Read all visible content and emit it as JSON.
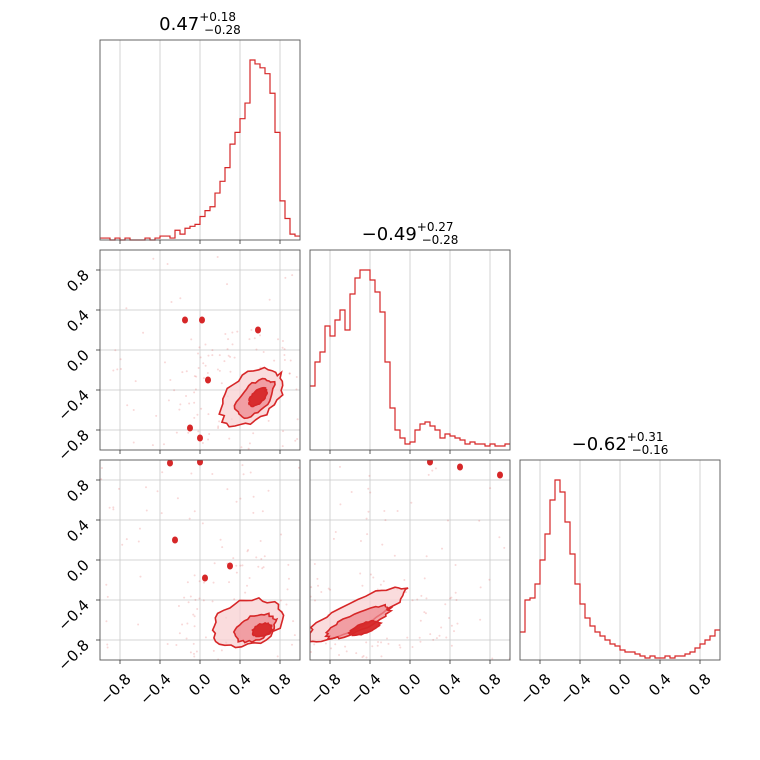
{
  "figure": {
    "type": "corner-plot",
    "accent": "#d62728",
    "fill_light": "#f8d0d2",
    "fill_mid": "#ee8a8f"
  },
  "titles": [
    {
      "median": "0.47",
      "plus": "+0.18",
      "minus": "−0.28"
    },
    {
      "median": "−0.49",
      "plus": "+0.27",
      "minus": "−0.28"
    },
    {
      "median": "−0.62",
      "plus": "+0.31",
      "minus": "−0.16"
    }
  ],
  "tick_labels": [
    "−0.8",
    "−0.4",
    "0.0",
    "0.4",
    "0.8"
  ],
  "chart_data": [
    {
      "type": "histogram",
      "param_index": 0,
      "xlim": [
        -1,
        1
      ],
      "bin_width": 0.05,
      "bin_starts": [
        -1.0,
        -0.95,
        -0.9,
        -0.85,
        -0.8,
        -0.75,
        -0.7,
        -0.65,
        -0.6,
        -0.55,
        -0.5,
        -0.45,
        -0.4,
        -0.35,
        -0.3,
        -0.25,
        -0.2,
        -0.15,
        -0.1,
        -0.05,
        0.0,
        0.05,
        0.1,
        0.15,
        0.2,
        0.25,
        0.3,
        0.35,
        0.4,
        0.45,
        0.5,
        0.55,
        0.6,
        0.65,
        0.7,
        0.75,
        0.8,
        0.85,
        0.9,
        0.95
      ],
      "values": [
        0.01,
        0.01,
        0.0,
        0.01,
        0.0,
        0.01,
        0.0,
        0.0,
        0.0,
        0.01,
        0.0,
        0.01,
        0.02,
        0.02,
        0.01,
        0.05,
        0.03,
        0.06,
        0.07,
        0.08,
        0.12,
        0.15,
        0.17,
        0.24,
        0.3,
        0.37,
        0.49,
        0.55,
        0.62,
        0.7,
        0.92,
        0.9,
        0.88,
        0.85,
        0.75,
        0.55,
        0.2,
        0.11,
        0.03,
        0.02
      ]
    },
    {
      "type": "histogram",
      "param_index": 1,
      "xlim": [
        -1,
        1
      ],
      "bin_width": 0.05,
      "bin_starts": [
        -1.0,
        -0.95,
        -0.9,
        -0.85,
        -0.8,
        -0.75,
        -0.7,
        -0.65,
        -0.6,
        -0.55,
        -0.5,
        -0.45,
        -0.4,
        -0.35,
        -0.3,
        -0.25,
        -0.2,
        -0.15,
        -0.1,
        -0.05,
        0.0,
        0.05,
        0.1,
        0.15,
        0.2,
        0.25,
        0.3,
        0.35,
        0.4,
        0.45,
        0.5,
        0.55,
        0.6,
        0.65,
        0.7,
        0.75,
        0.8,
        0.85,
        0.9,
        0.95
      ],
      "values": [
        0.32,
        0.44,
        0.49,
        0.62,
        0.57,
        0.65,
        0.7,
        0.6,
        0.78,
        0.86,
        0.9,
        0.9,
        0.85,
        0.79,
        0.69,
        0.44,
        0.21,
        0.1,
        0.06,
        0.03,
        0.04,
        0.1,
        0.13,
        0.14,
        0.12,
        0.1,
        0.06,
        0.08,
        0.07,
        0.06,
        0.05,
        0.03,
        0.04,
        0.03,
        0.03,
        0.02,
        0.03,
        0.02,
        0.02,
        0.03
      ]
    },
    {
      "type": "histogram",
      "param_index": 2,
      "xlim": [
        -1,
        1
      ],
      "bin_width": 0.05,
      "bin_starts": [
        -1.0,
        -0.95,
        -0.9,
        -0.85,
        -0.8,
        -0.75,
        -0.7,
        -0.65,
        -0.6,
        -0.55,
        -0.5,
        -0.45,
        -0.4,
        -0.35,
        -0.3,
        -0.25,
        -0.2,
        -0.15,
        -0.1,
        -0.05,
        0.0,
        0.05,
        0.1,
        0.15,
        0.2,
        0.25,
        0.3,
        0.35,
        0.4,
        0.45,
        0.5,
        0.55,
        0.6,
        0.65,
        0.7,
        0.75,
        0.8,
        0.85,
        0.9,
        0.95
      ],
      "values": [
        0.14,
        0.3,
        0.31,
        0.38,
        0.5,
        0.63,
        0.8,
        0.9,
        0.84,
        0.69,
        0.53,
        0.38,
        0.28,
        0.21,
        0.17,
        0.14,
        0.12,
        0.1,
        0.08,
        0.07,
        0.05,
        0.04,
        0.04,
        0.03,
        0.02,
        0.01,
        0.02,
        0.01,
        0.01,
        0.02,
        0.01,
        0.02,
        0.02,
        0.03,
        0.04,
        0.06,
        0.08,
        0.1,
        0.12,
        0.15
      ]
    },
    {
      "type": "contour-2d",
      "x_param": 0,
      "y_param": 1,
      "xlim": [
        -1,
        1
      ],
      "ylim": [
        -1,
        1
      ],
      "levels": [
        {
          "level": "outer",
          "center": [
            0.52,
            -0.47
          ],
          "radii": [
            0.36,
            0.22
          ],
          "angle_deg": 40
        },
        {
          "level": "middle",
          "center": [
            0.55,
            -0.48
          ],
          "radii": [
            0.24,
            0.13
          ],
          "angle_deg": 45
        },
        {
          "level": "inner",
          "center": [
            0.58,
            -0.47
          ],
          "radii": [
            0.11,
            0.06
          ],
          "angle_deg": 45
        }
      ],
      "islands": [
        [
          -0.15,
          0.3
        ],
        [
          0.02,
          0.3
        ],
        [
          0.58,
          0.2
        ],
        [
          -0.1,
          -0.78
        ],
        [
          0.0,
          -0.88
        ],
        [
          0.08,
          -0.3
        ]
      ],
      "scatter_seed": 7,
      "scatter_count": 140
    },
    {
      "type": "contour-2d",
      "x_param": 0,
      "y_param": 2,
      "xlim": [
        -1,
        1
      ],
      "ylim": [
        -1,
        1
      ],
      "levels": [
        {
          "level": "outer",
          "center": [
            0.47,
            -0.63
          ],
          "radii": [
            0.36,
            0.22
          ],
          "angle_deg": 18
        },
        {
          "level": "middle",
          "center": [
            0.55,
            -0.68
          ],
          "radii": [
            0.22,
            0.12
          ],
          "angle_deg": 22
        },
        {
          "level": "inner",
          "center": [
            0.62,
            -0.7
          ],
          "radii": [
            0.1,
            0.06
          ],
          "angle_deg": 20
        }
      ],
      "islands": [
        [
          -0.25,
          0.2
        ],
        [
          0.3,
          -0.06
        ],
        [
          0.05,
          -0.18
        ],
        [
          -0.3,
          0.97
        ],
        [
          0.0,
          0.98
        ]
      ],
      "scatter_seed": 11,
      "scatter_count": 140
    },
    {
      "type": "contour-2d",
      "x_param": 1,
      "y_param": 2,
      "xlim": [
        -1,
        1
      ],
      "ylim": [
        -1,
        1
      ],
      "levels": [
        {
          "level": "outer",
          "center": [
            -0.55,
            -0.55
          ],
          "radii": [
            0.55,
            0.13
          ],
          "angle_deg": 27
        },
        {
          "level": "middle",
          "center": [
            -0.52,
            -0.62
          ],
          "radii": [
            0.35,
            0.09
          ],
          "angle_deg": 24
        },
        {
          "level": "inner",
          "center": [
            -0.45,
            -0.68
          ],
          "radii": [
            0.16,
            0.05
          ],
          "angle_deg": 20
        }
      ],
      "islands": [
        [
          0.2,
          0.98
        ],
        [
          0.5,
          0.93
        ],
        [
          0.9,
          0.85
        ]
      ],
      "scatter_seed": 23,
      "scatter_count": 140
    }
  ]
}
